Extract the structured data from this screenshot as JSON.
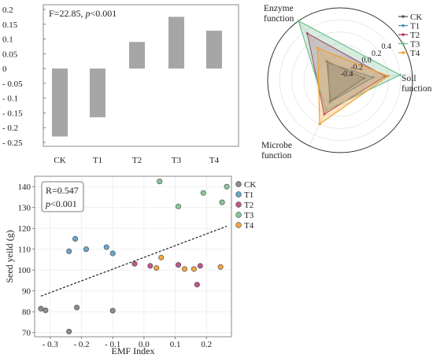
{
  "chart_data": [
    {
      "type": "bar",
      "annotation_prefix": "F=22.85, ",
      "annotation_p": "p",
      "annotation_suffix": "<0.001",
      "categories": [
        "CK",
        "T1",
        "T2",
        "T3",
        "T4"
      ],
      "values": [
        -0.23,
        -0.165,
        0.09,
        0.175,
        0.128
      ],
      "ylim": [
        -0.25,
        0.2
      ],
      "yticks": [
        -0.25,
        -0.2,
        -0.15,
        -0.1,
        -0.05,
        0,
        0.05,
        0.1,
        0.15,
        0.2
      ],
      "ytick_labels": [
        "- 0.25",
        "- 0.2",
        "- 0.15",
        "- 0.1",
        "- 0.05",
        "0",
        "0.05",
        "0.1",
        "0.15",
        "0.2"
      ],
      "bar_color": "#a6a6a6",
      "grid": false
    },
    {
      "type": "radar",
      "axes": [
        "Enzyme function",
        "Soil function",
        "Microbe function"
      ],
      "axis_label_lines": [
        [
          "Enzyme",
          "function"
        ],
        [
          "Soil",
          "function"
        ],
        [
          "Microbe",
          "function"
        ]
      ],
      "rlim": [
        -0.6,
        0.6
      ],
      "rticks": [
        -0.4,
        -0.2,
        0.0,
        0.2,
        0.4
      ],
      "rtick_labels": [
        "-0.4",
        "-0.2",
        "0.0",
        "0.2",
        "0.4"
      ],
      "series": [
        {
          "name": "CK",
          "color": "#555555",
          "values": [
            -0.22,
            -0.2,
            -0.22
          ]
        },
        {
          "name": "T1",
          "color": "#4f8fb6",
          "values": [
            -0.25,
            -0.05,
            -0.2
          ]
        },
        {
          "name": "T2",
          "color": "#b5366f",
          "values": [
            0.35,
            0.15,
            0.02
          ]
        },
        {
          "name": "T3",
          "color": "#6fbf8f",
          "values": [
            0.6,
            0.4,
            -0.05
          ]
        },
        {
          "name": "T4",
          "color": "#f0a030",
          "values": [
            0.05,
            0.2,
            0.2
          ]
        }
      ],
      "legend_position": "top-right"
    },
    {
      "type": "scatter",
      "xlabel": "EMF  Index",
      "ylabel": "Seed yeild (g)",
      "annotation_r": "R=0.547",
      "annotation_p": "p",
      "annotation_p_suffix": "<0.001",
      "xlim": [
        -0.35,
        0.28
      ],
      "ylim": [
        68,
        145
      ],
      "xticks": [
        -0.3,
        -0.2,
        -0.1,
        0.0,
        0.1,
        0.2
      ],
      "xtick_labels": [
        "- 0.3",
        "- 0.2",
        "- 0.1",
        "0.0",
        "0.1",
        "0.2"
      ],
      "yticks": [
        70,
        80,
        90,
        100,
        110,
        120,
        130,
        140
      ],
      "ytick_labels": [
        "70",
        "80",
        "90",
        "100",
        "110",
        "120",
        "130",
        "140"
      ],
      "grid": true,
      "legend_position": "outside-right",
      "series": [
        {
          "name": "CK",
          "color": "#8c8c8c",
          "points": [
            [
              -0.33,
              81.5
            ],
            [
              -0.315,
              80.7
            ],
            [
              -0.24,
              70.5
            ],
            [
              -0.215,
              82
            ],
            [
              -0.1,
              80.5
            ]
          ]
        },
        {
          "name": "T1",
          "color": "#6aa6cc",
          "points": [
            [
              -0.24,
              109
            ],
            [
              -0.22,
              115
            ],
            [
              -0.185,
              110
            ],
            [
              -0.12,
              111
            ],
            [
              -0.1,
              108
            ]
          ]
        },
        {
          "name": "T2",
          "color": "#c0578a",
          "points": [
            [
              -0.03,
              103
            ],
            [
              0.02,
              102
            ],
            [
              0.11,
              102.5
            ],
            [
              0.17,
              93
            ],
            [
              0.18,
              102
            ]
          ]
        },
        {
          "name": "T3",
          "color": "#86c79b",
          "points": [
            [
              0.05,
              142.5
            ],
            [
              0.11,
              130.5
            ],
            [
              0.19,
              137
            ],
            [
              0.25,
              132.5
            ],
            [
              0.265,
              140
            ]
          ]
        },
        {
          "name": "T4",
          "color": "#f2a542",
          "points": [
            [
              0.04,
              101
            ],
            [
              0.055,
              106
            ],
            [
              0.13,
              100.5
            ],
            [
              0.16,
              100.5
            ],
            [
              0.245,
              101.5
            ]
          ]
        }
      ],
      "regression": {
        "x": [
          -0.33,
          0.265
        ],
        "y": [
          87.5,
          121
        ]
      }
    }
  ]
}
